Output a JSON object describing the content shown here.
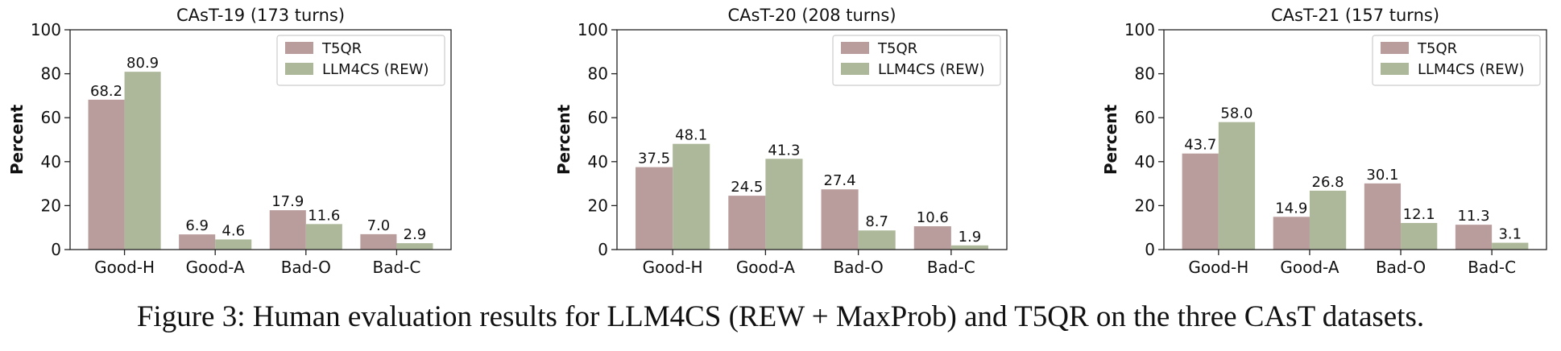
{
  "caption": "Figure 3: Human evaluation results for LLM4CS (REW + MaxProb) and T5QR on the three CAsT datasets.",
  "colors": {
    "t5qr": "#b99c9c",
    "llm4cs": "#adb89a"
  },
  "chart_data": [
    {
      "type": "bar",
      "title": "CAsT-19 (173 turns)",
      "xlabel": "",
      "ylabel": "Percent",
      "categories": [
        "Good-H",
        "Good-A",
        "Bad-O",
        "Bad-C"
      ],
      "ylim": [
        0,
        100
      ],
      "yticks": [
        0,
        20,
        40,
        60,
        80,
        100
      ],
      "legend_position": "top-right",
      "grid": false,
      "series": [
        {
          "name": "T5QR",
          "values": [
            68.2,
            6.9,
            17.9,
            7.0
          ],
          "labels": [
            "68.2",
            "6.9",
            "17.9",
            "7.0"
          ]
        },
        {
          "name": "LLM4CS (REW)",
          "values": [
            80.9,
            4.6,
            11.6,
            2.9
          ],
          "labels": [
            "80.9",
            "4.6",
            "11.6",
            "2.9"
          ]
        }
      ]
    },
    {
      "type": "bar",
      "title": "CAsT-20 (208 turns)",
      "xlabel": "",
      "ylabel": "Percent",
      "categories": [
        "Good-H",
        "Good-A",
        "Bad-O",
        "Bad-C"
      ],
      "ylim": [
        0,
        100
      ],
      "yticks": [
        0,
        20,
        40,
        60,
        80,
        100
      ],
      "legend_position": "top-right",
      "grid": false,
      "series": [
        {
          "name": "T5QR",
          "values": [
            37.5,
            24.5,
            27.4,
            10.6
          ],
          "labels": [
            "37.5",
            "24.5",
            "27.4",
            "10.6"
          ]
        },
        {
          "name": "LLM4CS (REW)",
          "values": [
            48.1,
            41.3,
            8.7,
            1.9
          ],
          "labels": [
            "48.1",
            "41.3",
            "8.7",
            "1.9"
          ]
        }
      ]
    },
    {
      "type": "bar",
      "title": "CAsT-21 (157 turns)",
      "xlabel": "",
      "ylabel": "Percent",
      "categories": [
        "Good-H",
        "Good-A",
        "Bad-O",
        "Bad-C"
      ],
      "ylim": [
        0,
        100
      ],
      "yticks": [
        0,
        20,
        40,
        60,
        80,
        100
      ],
      "legend_position": "top-right",
      "grid": false,
      "series": [
        {
          "name": "T5QR",
          "values": [
            43.7,
            14.9,
            30.1,
            11.3
          ],
          "labels": [
            "43.7",
            "14.9",
            "30.1",
            "11.3"
          ]
        },
        {
          "name": "LLM4CS (REW)",
          "values": [
            58.0,
            26.8,
            12.1,
            3.1
          ],
          "labels": [
            "58.0",
            "26.8",
            "12.1",
            "3.1"
          ]
        }
      ]
    }
  ]
}
